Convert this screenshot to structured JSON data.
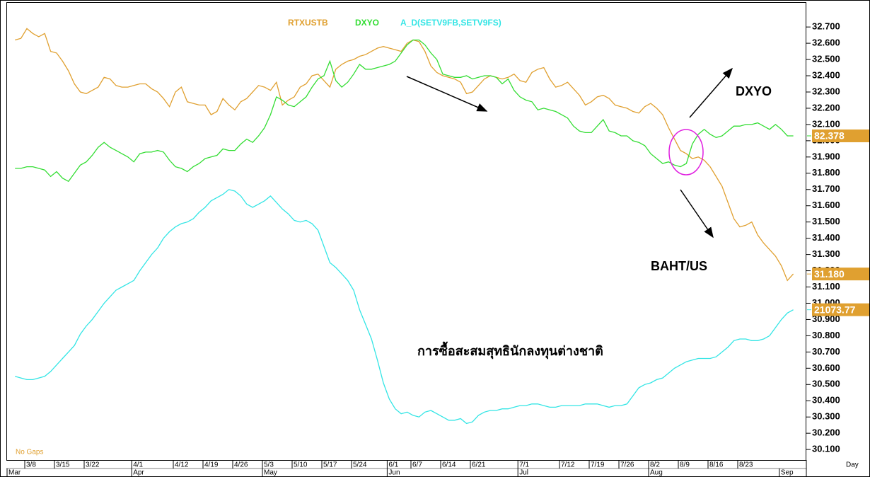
{
  "chart_data": {
    "type": "line",
    "x_label": "Day",
    "categories": [
      null,
      null,
      "3/8",
      null,
      null,
      null,
      null,
      "3/15",
      null,
      null,
      null,
      null,
      "3/22",
      null,
      null,
      null,
      null,
      null,
      null,
      null,
      "4/1",
      null,
      null,
      null,
      null,
      null,
      null,
      "4/12",
      null,
      null,
      null,
      null,
      "4/19",
      null,
      null,
      null,
      null,
      "4/26",
      null,
      null,
      null,
      null,
      "5/3",
      null,
      null,
      null,
      null,
      "5/10",
      null,
      null,
      null,
      null,
      "5/17",
      null,
      null,
      null,
      null,
      "5/24",
      null,
      null,
      null,
      null,
      null,
      "6/1",
      null,
      null,
      null,
      "6/7",
      null,
      null,
      null,
      null,
      "6/14",
      null,
      null,
      null,
      null,
      "6/21",
      null,
      null,
      null,
      null,
      null,
      null,
      null,
      "7/1",
      null,
      null,
      null,
      null,
      null,
      null,
      "7/12",
      null,
      null,
      null,
      null,
      "7/19",
      null,
      null,
      null,
      null,
      "7/26",
      null,
      null,
      null,
      null,
      "8/2",
      null,
      null,
      null,
      null,
      "8/9",
      null,
      null,
      null,
      null,
      "8/16",
      null,
      null,
      null,
      null,
      "8/23",
      null,
      null,
      null,
      null,
      null,
      null,
      null,
      null,
      null
    ],
    "month_categories": [
      "Mar",
      null,
      null,
      null,
      null,
      null,
      null,
      null,
      null,
      null,
      null,
      null,
      null,
      null,
      null,
      null,
      null,
      null,
      null,
      null,
      "Apr",
      null,
      null,
      null,
      null,
      null,
      null,
      null,
      null,
      null,
      null,
      null,
      null,
      null,
      null,
      null,
      null,
      null,
      null,
      null,
      null,
      null,
      "May",
      null,
      null,
      null,
      null,
      null,
      null,
      null,
      null,
      null,
      null,
      null,
      null,
      null,
      null,
      null,
      null,
      null,
      null,
      null,
      null,
      "Jun",
      null,
      null,
      null,
      null,
      null,
      null,
      null,
      null,
      null,
      null,
      null,
      null,
      null,
      null,
      null,
      null,
      null,
      null,
      null,
      null,
      null,
      "Jul",
      null,
      null,
      null,
      null,
      null,
      null,
      null,
      null,
      null,
      null,
      null,
      null,
      null,
      null,
      null,
      null,
      null,
      null,
      null,
      null,
      null,
      "Aug",
      null,
      null,
      null,
      null,
      null,
      null,
      null,
      null,
      null,
      null,
      null,
      null,
      null,
      null,
      null,
      null,
      null,
      null,
      null,
      null,
      null,
      "Sep",
      null,
      null
    ],
    "series": [
      {
        "name": "RTXUSTB",
        "color": "#E0A030",
        "values": [
          32.62,
          32.63,
          32.69,
          32.66,
          32.64,
          32.66,
          32.55,
          32.54,
          32.49,
          32.43,
          32.35,
          32.3,
          32.29,
          32.31,
          32.33,
          32.39,
          32.38,
          32.34,
          32.33,
          32.33,
          32.34,
          32.35,
          32.35,
          32.32,
          32.3,
          32.26,
          32.21,
          32.3,
          32.33,
          32.24,
          32.23,
          32.22,
          32.22,
          32.16,
          32.18,
          32.26,
          32.22,
          32.19,
          32.24,
          32.26,
          32.3,
          32.34,
          32.33,
          32.31,
          32.36,
          32.22,
          32.25,
          32.27,
          32.33,
          32.35,
          32.4,
          32.41,
          32.37,
          32.33,
          32.44,
          32.47,
          32.49,
          32.5,
          32.52,
          32.53,
          32.55,
          32.57,
          32.58,
          32.57,
          32.56,
          32.55,
          32.6,
          32.62,
          32.61,
          32.55,
          32.46,
          32.42,
          32.4,
          32.39,
          32.38,
          32.36,
          32.29,
          32.3,
          32.34,
          32.38,
          32.4,
          32.39,
          32.38,
          32.39,
          32.41,
          32.37,
          32.36,
          32.42,
          32.44,
          32.45,
          32.38,
          32.33,
          32.34,
          32.36,
          32.32,
          32.28,
          32.22,
          32.24,
          32.27,
          32.28,
          32.26,
          32.22,
          32.21,
          32.2,
          32.18,
          32.17,
          32.21,
          32.23,
          32.2,
          32.16,
          32.08,
          32.01,
          31.94,
          31.92,
          31.89,
          31.9,
          31.88,
          31.84,
          31.78,
          31.72,
          31.62,
          31.52,
          31.47,
          31.48,
          31.5,
          31.42,
          31.37,
          31.33,
          31.29,
          31.23,
          31.14,
          31.18
        ]
      },
      {
        "name": "DXYO",
        "color": "#33DD33",
        "values": [
          31.83,
          31.83,
          31.84,
          31.84,
          31.83,
          31.82,
          31.78,
          31.81,
          31.77,
          31.75,
          31.8,
          31.85,
          31.87,
          31.91,
          31.96,
          31.99,
          31.96,
          31.94,
          31.92,
          31.9,
          31.87,
          31.92,
          31.93,
          31.93,
          31.94,
          31.93,
          31.88,
          31.84,
          31.83,
          31.81,
          31.84,
          31.86,
          31.89,
          31.9,
          31.91,
          31.95,
          31.94,
          31.94,
          31.98,
          32.01,
          31.99,
          32.03,
          32.08,
          32.16,
          32.27,
          32.25,
          32.22,
          32.21,
          32.24,
          32.27,
          32.33,
          32.38,
          32.4,
          32.49,
          32.37,
          32.33,
          32.36,
          32.41,
          32.47,
          32.44,
          32.44,
          32.45,
          32.46,
          32.47,
          32.49,
          32.54,
          32.59,
          32.62,
          32.62,
          32.59,
          32.54,
          32.5,
          32.41,
          32.4,
          32.39,
          32.39,
          32.4,
          32.38,
          32.39,
          32.4,
          32.4,
          32.39,
          32.35,
          32.38,
          32.31,
          32.27,
          32.25,
          32.24,
          32.19,
          32.2,
          32.19,
          32.18,
          32.16,
          32.14,
          32.09,
          32.06,
          32.05,
          32.05,
          32.09,
          32.13,
          32.06,
          32.05,
          32.03,
          32.03,
          32.0,
          31.99,
          31.97,
          31.92,
          31.89,
          31.86,
          31.87,
          31.85,
          31.84,
          31.86,
          31.98,
          32.04,
          32.07,
          32.04,
          32.02,
          32.03,
          32.06,
          32.09,
          32.09,
          32.1,
          32.1,
          32.11,
          32.09,
          32.07,
          32.1,
          32.07,
          32.03,
          32.03
        ]
      },
      {
        "name": "A_D(SETV9FB,SETV9FS)",
        "color": "#33E5E5",
        "values": [
          30.55,
          30.54,
          30.53,
          30.53,
          30.54,
          30.55,
          30.58,
          30.62,
          30.66,
          30.7,
          30.74,
          30.81,
          30.86,
          30.9,
          30.95,
          31.0,
          31.04,
          31.08,
          31.1,
          31.12,
          31.14,
          31.2,
          31.25,
          31.3,
          31.34,
          31.4,
          31.44,
          31.47,
          31.49,
          31.5,
          31.52,
          31.56,
          31.59,
          31.63,
          31.65,
          31.67,
          31.7,
          31.69,
          31.66,
          31.61,
          31.59,
          31.61,
          31.63,
          31.66,
          31.62,
          31.58,
          31.55,
          31.51,
          31.5,
          31.51,
          31.49,
          31.45,
          31.35,
          31.25,
          31.22,
          31.18,
          31.14,
          31.08,
          30.96,
          30.87,
          30.78,
          30.65,
          30.51,
          30.41,
          30.35,
          30.32,
          30.33,
          30.31,
          30.3,
          30.33,
          30.34,
          30.32,
          30.3,
          30.28,
          30.28,
          30.29,
          30.26,
          30.27,
          30.31,
          30.33,
          30.34,
          30.34,
          30.35,
          30.35,
          30.36,
          30.37,
          30.37,
          30.38,
          30.38,
          30.37,
          30.36,
          30.36,
          30.37,
          30.37,
          30.37,
          30.37,
          30.38,
          30.38,
          30.38,
          30.37,
          30.36,
          30.37,
          30.37,
          30.38,
          30.43,
          30.48,
          30.5,
          30.51,
          30.53,
          30.54,
          30.57,
          30.6,
          30.62,
          30.64,
          30.65,
          30.66,
          30.66,
          30.66,
          30.67,
          30.7,
          30.73,
          30.77,
          30.78,
          30.78,
          30.77,
          30.77,
          30.78,
          30.8,
          30.85,
          30.9,
          30.94,
          30.96
        ]
      }
    ],
    "price_tags": [
      "31.180",
      "82.378",
      "21073.77"
    ],
    "ylim": [
      30.04,
      32.84
    ],
    "yticks": [
      {
        "value": 32.7,
        "label": "32.700"
      },
      {
        "value": 32.6,
        "label": "32.600"
      },
      {
        "value": 32.5,
        "label": "32.500"
      },
      {
        "value": 32.4,
        "label": "32.400"
      },
      {
        "value": 32.3,
        "label": "32.300"
      },
      {
        "value": 32.2,
        "label": "32.200"
      },
      {
        "value": 32.1,
        "label": "32.100"
      },
      {
        "value": 32.0,
        "label": "32.000"
      },
      {
        "value": 31.9,
        "label": "31.900"
      },
      {
        "value": 31.8,
        "label": "31.800"
      },
      {
        "value": 31.7,
        "label": "31.700"
      },
      {
        "value": 31.6,
        "label": "31.600"
      },
      {
        "value": 31.5,
        "label": "31.500"
      },
      {
        "value": 31.4,
        "label": "31.400"
      },
      {
        "value": 31.3,
        "label": "31.300"
      },
      {
        "value": 31.2,
        "label": "31.200"
      },
      {
        "value": 31.1,
        "label": "31.100"
      },
      {
        "value": 31.0,
        "label": "31.000"
      },
      {
        "value": 30.9,
        "label": "30.900"
      },
      {
        "value": 30.8,
        "label": "30.800"
      },
      {
        "value": 30.7,
        "label": "30.700"
      },
      {
        "value": 30.6,
        "label": "30.600"
      },
      {
        "value": 30.5,
        "label": "30.500"
      },
      {
        "value": 30.4,
        "label": "30.400"
      },
      {
        "value": 30.3,
        "label": "30.300"
      },
      {
        "value": 30.2,
        "label": "30.200"
      },
      {
        "value": 30.1,
        "label": "30.100"
      }
    ],
    "grid": false,
    "annotations": {
      "dxyo": "DXYO",
      "baht": "BAHT/US",
      "thai": "การซื้อสะสมสุทธินักลงทุนต่างชาติ",
      "gaps": "No Gaps"
    }
  }
}
